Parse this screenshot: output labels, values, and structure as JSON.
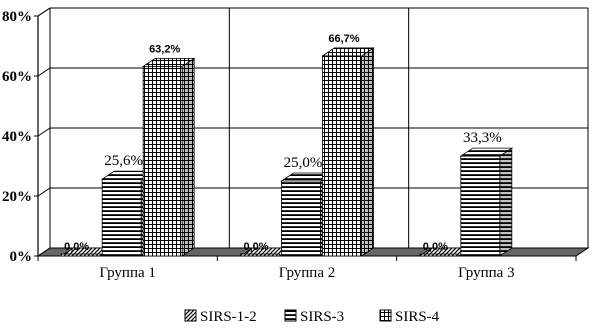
{
  "chart_data": {
    "type": "bar",
    "title": "",
    "xlabel": "",
    "ylabel": "",
    "categories": [
      "Группа 1",
      "Группа 2",
      "Группа 3"
    ],
    "series": [
      {
        "name": "SIRS-1-2",
        "values": [
          0,
          0,
          0
        ],
        "labels": [
          "0,0%",
          "0,0%",
          "0,0%"
        ],
        "pattern": "diag"
      },
      {
        "name": "SIRS-3",
        "values": [
          25.6,
          25.0,
          33.3
        ],
        "labels": [
          "25,6%",
          "25,0%",
          "33,3%"
        ],
        "pattern": "hlines"
      },
      {
        "name": "SIRS-4",
        "values": [
          63.2,
          66.7,
          0
        ],
        "labels": [
          "63,2%",
          "66,7%",
          ""
        ],
        "pattern": "grid"
      }
    ],
    "yticks": [
      "0%",
      "20%",
      "40%",
      "60%",
      "80%"
    ],
    "ylim": [
      0,
      80
    ],
    "grid": true,
    "legend": "bottom",
    "colors": {
      "bar_face": "#ffffff",
      "bar_line": "#000000",
      "floor": "#666666",
      "grid": "#000000"
    }
  }
}
